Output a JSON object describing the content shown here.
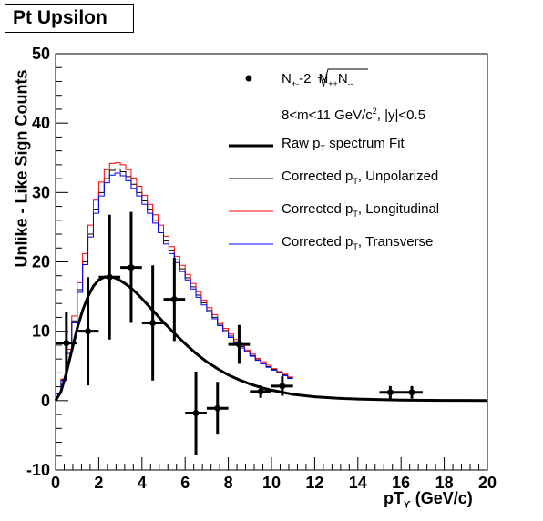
{
  "chart_data": {
    "type": "line",
    "title": "Pt Upsilon",
    "xlabel_main": "pT",
    "xlabel_sub": "ϒ",
    "xlabel_unit": " (GeV/c)",
    "ylabel": "Unlike - Like Sign Counts",
    "xlim": [
      0,
      20
    ],
    "ylim": [
      -10,
      50
    ],
    "x_ticks": [
      0,
      2,
      4,
      6,
      8,
      10,
      12,
      14,
      16,
      18,
      20
    ],
    "y_ticks": [
      -10,
      0,
      10,
      20,
      30,
      40,
      50
    ],
    "legend": {
      "placement": "top-right",
      "data_label": {
        "a": "N",
        "a_sub": "+-",
        "b": "-2",
        "c": "N",
        "c_sub": "++",
        "d": "N",
        "d_sub": "--"
      },
      "cut_label": {
        "a": "8<m<11 GeV/c",
        "sup": "2",
        "b": ", |y|<0.5"
      },
      "entries": [
        {
          "key": "fit",
          "a": "Raw p",
          "sub": "T",
          "b": " spectrum Fit",
          "color": "#000000"
        },
        {
          "key": "unpol",
          "a": "Corrected p",
          "sub": "T",
          "b": ", Unpolarized",
          "color": "#000000"
        },
        {
          "key": "long",
          "a": "Corrected p",
          "sub": "T",
          "b": ", Longitudinal",
          "color": "#ff0000"
        },
        {
          "key": "trans",
          "a": "Corrected p",
          "sub": "T",
          "b": ", Transverse",
          "color": "#0000ff"
        }
      ]
    },
    "data_points": [
      {
        "x": 0.5,
        "y": 8.3,
        "xerr": 0.5,
        "yerr": 4.5
      },
      {
        "x": 1.5,
        "y": 10.0,
        "xerr": 0.5,
        "yerr": 7.8
      },
      {
        "x": 2.5,
        "y": 17.8,
        "xerr": 0.5,
        "yerr": 9.0
      },
      {
        "x": 3.5,
        "y": 19.2,
        "xerr": 0.5,
        "yerr": 8.0
      },
      {
        "x": 4.5,
        "y": 11.2,
        "xerr": 0.5,
        "yerr": 8.3
      },
      {
        "x": 5.5,
        "y": 14.6,
        "xerr": 0.5,
        "yerr": 6.0
      },
      {
        "x": 6.5,
        "y": -1.8,
        "xerr": 0.5,
        "yerr": 6.0
      },
      {
        "x": 7.5,
        "y": -1.1,
        "xerr": 0.5,
        "yerr": 3.8
      },
      {
        "x": 8.5,
        "y": 8.1,
        "xerr": 0.5,
        "yerr": 2.8
      },
      {
        "x": 9.5,
        "y": 1.3,
        "xerr": 0.5,
        "yerr": 0.9
      },
      {
        "x": 10.5,
        "y": 2.1,
        "xerr": 0.5,
        "yerr": 1.4
      },
      {
        "x": 15.5,
        "y": 1.2,
        "xerr": 0.5,
        "yerr": 0.9
      },
      {
        "x": 16.5,
        "y": 1.2,
        "xerr": 0.5,
        "yerr": 0.9
      }
    ],
    "fit_curve": {
      "name": "Raw pT spectrum Fit",
      "x": [
        0,
        0.25,
        0.5,
        0.75,
        1.0,
        1.25,
        1.5,
        1.75,
        2.0,
        2.25,
        2.5,
        2.75,
        3.0,
        3.25,
        3.5,
        3.75,
        4.0,
        4.5,
        5.0,
        5.5,
        6.0,
        6.5,
        7.0,
        7.5,
        8.0,
        8.5,
        9.0,
        9.5,
        10.0,
        11.0,
        12.0,
        13.0,
        14.0,
        16.0,
        18.0,
        20.0
      ],
      "y": [
        0,
        1.3,
        4.0,
        7.2,
        10.4,
        13.0,
        15.0,
        16.5,
        17.4,
        17.8,
        17.9,
        17.7,
        17.3,
        16.8,
        16.2,
        15.5,
        14.7,
        13.0,
        11.3,
        9.7,
        8.2,
        6.8,
        5.6,
        4.6,
        3.7,
        3.0,
        2.4,
        1.9,
        1.5,
        0.9,
        0.55,
        0.35,
        0.22,
        0.08,
        0.03,
        0.01
      ]
    },
    "histograms": {
      "bin_width": 0.25,
      "series": [
        {
          "key": "unpol",
          "name": "Corrected pT, Unpolarized",
          "color": "#000000",
          "values": [
            1.0,
            3.0,
            7.0,
            11.5,
            16.0,
            20.0,
            24.0,
            27.5,
            30.0,
            32.0,
            33.2,
            33.4,
            33.0,
            32.3,
            31.2,
            30.0,
            28.8,
            27.5,
            26.0,
            24.6,
            23.0,
            21.6,
            20.3,
            19.0,
            17.7,
            16.4,
            15.2,
            14.1,
            13.0,
            12.0,
            11.0,
            10.1,
            9.3,
            8.5,
            7.8,
            7.1,
            6.5,
            5.9,
            5.4,
            4.9,
            4.5,
            4.1,
            3.7,
            3.3
          ]
        },
        {
          "key": "long",
          "name": "Corrected pT, Longitudinal",
          "color": "#ff0000",
          "values": [
            1.0,
            3.1,
            7.4,
            12.2,
            17.0,
            21.2,
            25.3,
            28.9,
            31.5,
            33.3,
            34.2,
            34.3,
            34.0,
            33.3,
            32.1,
            30.9,
            29.6,
            28.3,
            26.8,
            25.3,
            23.7,
            22.2,
            20.8,
            19.5,
            18.2,
            16.9,
            15.7,
            14.5,
            13.4,
            12.4,
            11.3,
            10.4,
            9.6,
            8.8,
            8.0,
            7.3,
            6.7,
            6.1,
            5.6,
            5.1,
            4.6,
            4.2,
            3.8,
            3.4
          ]
        },
        {
          "key": "trans",
          "name": "Corrected pT, Transverse",
          "color": "#0000ff",
          "values": [
            1.0,
            2.9,
            6.8,
            11.2,
            15.6,
            19.6,
            23.6,
            27.0,
            29.5,
            31.4,
            32.5,
            32.8,
            32.4,
            31.7,
            30.6,
            29.5,
            28.3,
            27.0,
            25.6,
            24.2,
            22.6,
            21.2,
            19.9,
            18.6,
            17.4,
            16.1,
            14.9,
            13.8,
            12.8,
            11.8,
            10.8,
            9.9,
            9.1,
            8.3,
            7.6,
            7.0,
            6.4,
            5.8,
            5.3,
            4.8,
            4.4,
            4.0,
            3.6,
            3.2
          ]
        }
      ]
    },
    "grid": false
  }
}
